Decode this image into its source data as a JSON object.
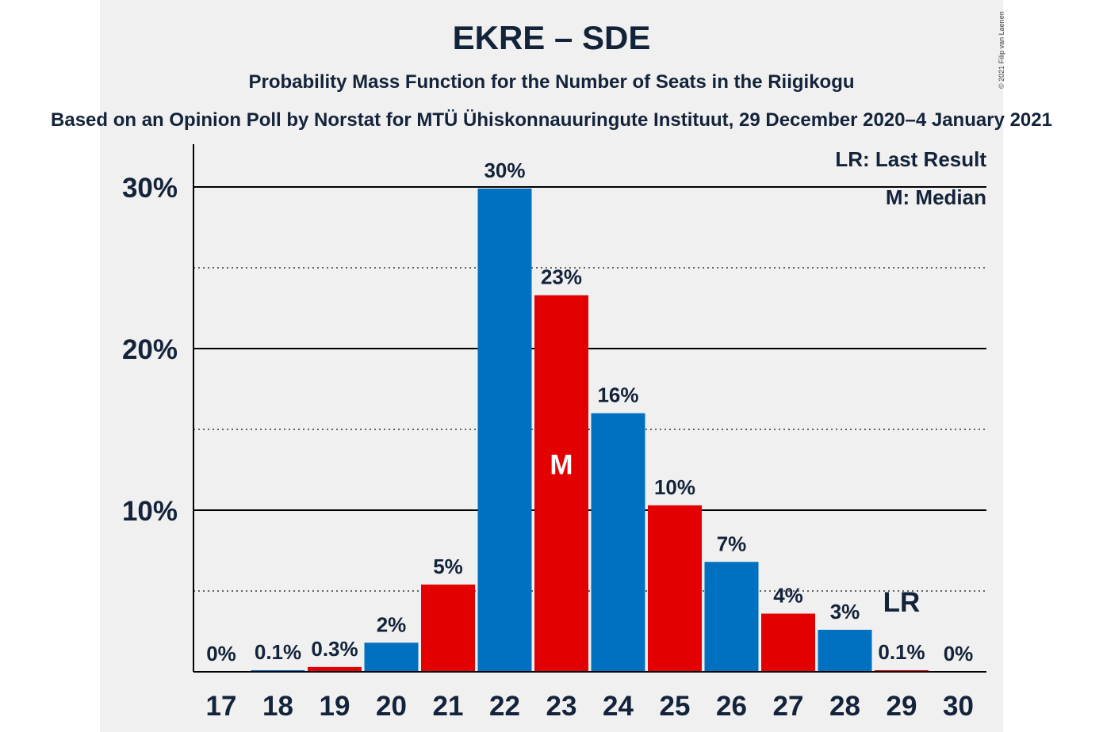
{
  "header": {
    "title": "EKRE – SDE",
    "subtitle": "Probability Mass Function for the Number of Seats in the Riigikogu",
    "subtitle2": "Based on an Opinion Poll by Norstat for MTÜ Ühiskonnauuringute Instituut, 29 December 2020–4 January 2021",
    "copyright": "© 2021 Filip van Laenen"
  },
  "legend": {
    "last_result": "LR: Last Result",
    "median": "M: Median"
  },
  "chart_data": {
    "type": "bar",
    "title": "EKRE – SDE",
    "subtitle": "Probability Mass Function for the Number of Seats in the Riigikogu",
    "xlabel": "",
    "ylabel": "",
    "ylim": [
      0,
      32.5
    ],
    "yticks": [
      {
        "value": 10,
        "label": "10%"
      },
      {
        "value": 20,
        "label": "20%"
      },
      {
        "value": 30,
        "label": "30%"
      }
    ],
    "minor_gridlines": [
      5,
      15,
      25
    ],
    "categories": [
      "17",
      "18",
      "19",
      "20",
      "21",
      "22",
      "23",
      "24",
      "25",
      "26",
      "27",
      "28",
      "29",
      "30"
    ],
    "values": [
      0,
      0.1,
      0.3,
      1.8,
      5.4,
      29.9,
      23.3,
      16.0,
      10.3,
      6.8,
      3.6,
      2.6,
      0.1,
      0
    ],
    "labels": [
      "0%",
      "0.1%",
      "0.3%",
      "2%",
      "5%",
      "30%",
      "23%",
      "16%",
      "10%",
      "7%",
      "4%",
      "3%",
      "0.1%",
      "0%"
    ],
    "colors": [
      "#0070c0",
      "#0070c0",
      "#e30000",
      "#0070c0",
      "#e30000",
      "#0070c0",
      "#e30000",
      "#0070c0",
      "#e30000",
      "#0070c0",
      "#e30000",
      "#0070c0",
      "#e30000",
      "#0070c0"
    ],
    "median_category": "23",
    "median_label": "M",
    "last_result_category": "29",
    "last_result_label": "LR"
  }
}
